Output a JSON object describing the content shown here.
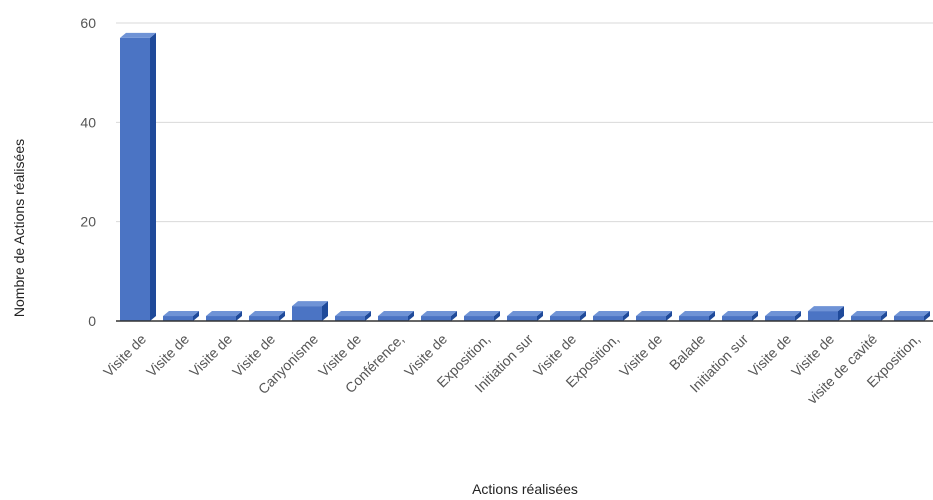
{
  "chart_data": {
    "type": "bar",
    "xlabel": "Actions réalisées",
    "ylabel": "Nombre de Actions réalisées",
    "ylim": [
      0,
      60
    ],
    "yticks": [
      0,
      20,
      40,
      60
    ],
    "grid": true,
    "style": "3d",
    "colors": {
      "bar_front": "#4b74c4",
      "bar_top": "#6f93d6",
      "bar_side": "#1f4a9a",
      "grid": "#d9d9d9",
      "baseline": "#333333"
    },
    "categories": [
      "Visite de",
      "Visite de",
      "Visite de",
      "Visite de",
      "Canyonisme",
      "Visite de",
      "Conférence,",
      "Visite de",
      "Exposition,",
      "Initiation sur",
      "Visite de",
      "Exposition,",
      "Visite de",
      "Balade",
      "Initiation sur",
      "Visite de",
      "Visite de",
      "visite de cavité",
      "Exposition,"
    ],
    "values": [
      57,
      1,
      1,
      1,
      3,
      1,
      1,
      1,
      1,
      1,
      1,
      1,
      1,
      1,
      1,
      1,
      2,
      1,
      1
    ]
  }
}
